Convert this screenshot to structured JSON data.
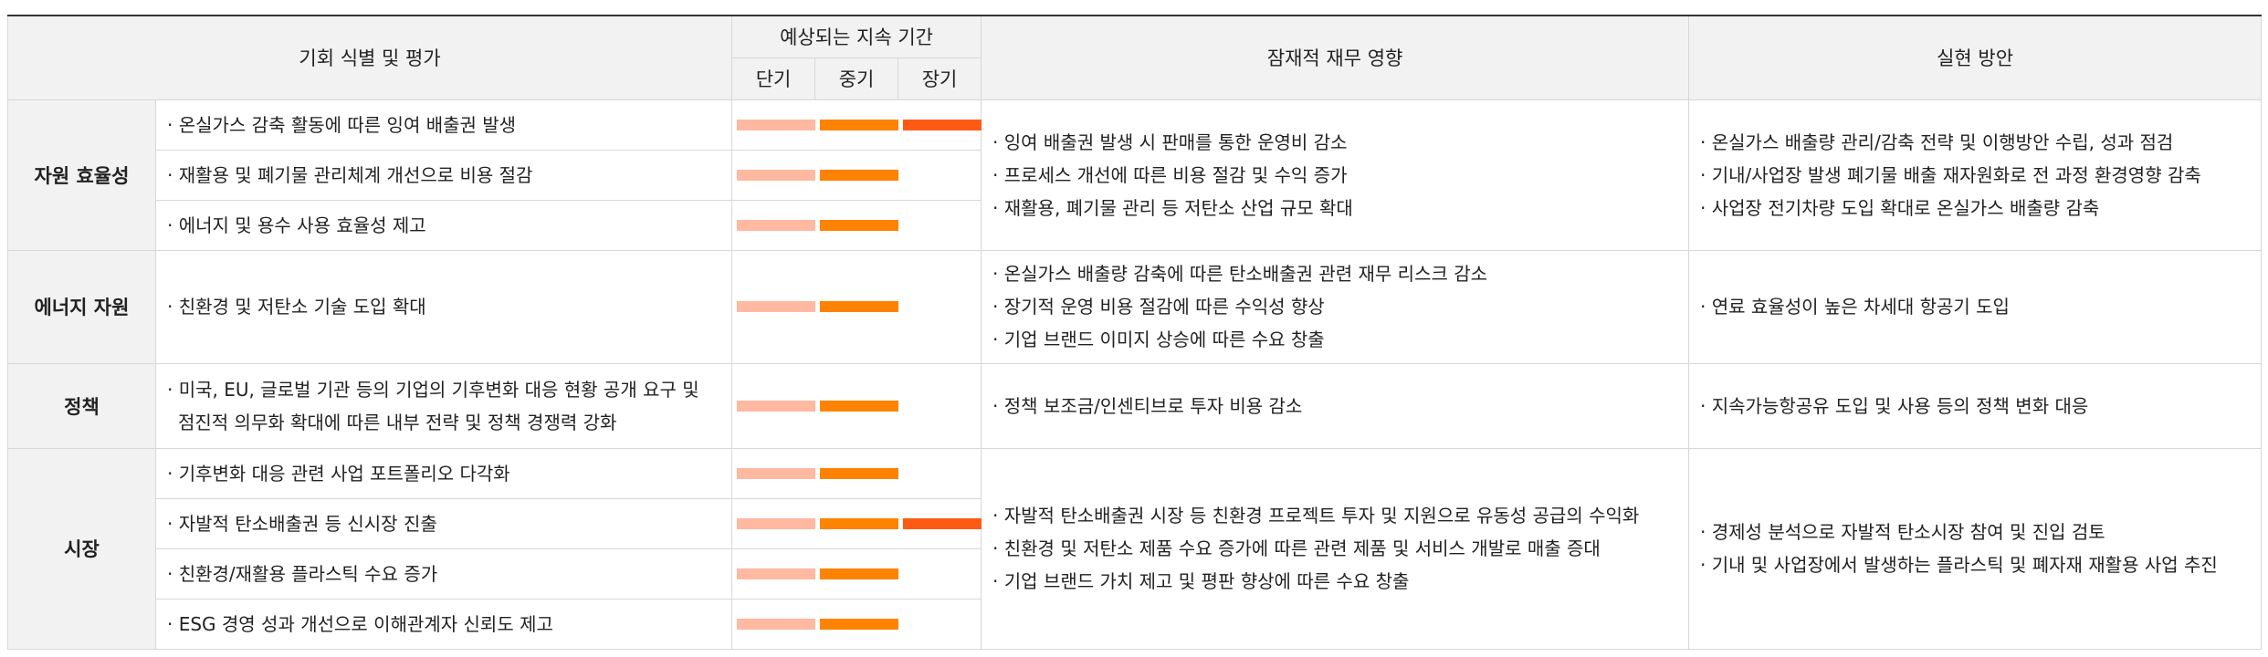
{
  "header": {
    "identification": "기회 식별 및 평가",
    "duration": "예상되는 지속 기간",
    "short": "단기",
    "medium": "중기",
    "long": "장기",
    "financial": "잠재적 재무 영향",
    "implementation": "실현 방안"
  },
  "colors": {
    "short": "#ffb9a0",
    "medium": "#ff8200",
    "long": "#ff5a14"
  },
  "groups": [
    {
      "category": "자원 효율성",
      "items": [
        {
          "text": "· 온실가스 감축 활동에 따른 잉여 배출권 발생",
          "short": true,
          "medium": true,
          "long": true
        },
        {
          "text": "· 재활용 및 폐기물 관리체계 개선으로 비용 절감",
          "short": true,
          "medium": true,
          "long": false
        },
        {
          "text": "· 에너지 및 용수 사용 효율성 제고",
          "short": true,
          "medium": true,
          "long": false
        }
      ],
      "financial": [
        "· 잉여 배출권 발생 시 판매를 통한 운영비 감소",
        "· 프로세스 개선에 따른 비용 절감 및 수익 증가",
        "· 재활용, 폐기물 관리 등 저탄소 산업 규모 확대"
      ],
      "implementation": [
        "· 온실가스 배출량 관리/감축 전략 및 이행방안 수립, 성과 점검",
        "· 기내/사업장 발생 폐기물 배출 재자원화로 전 과정 환경영향 감축",
        "· 사업장 전기차량 도입 확대로 온실가스 배출량 감축"
      ]
    },
    {
      "category": "에너지 자원",
      "items": [
        {
          "text": "· 친환경 및 저탄소 기술 도입 확대",
          "short": true,
          "medium": true,
          "long": false
        }
      ],
      "financial": [
        "· 온실가스 배출량 감축에 따른 탄소배출권 관련 재무 리스크 감소",
        "· 장기적 운영 비용 절감에 따른 수익성 향상",
        "· 기업 브랜드 이미지 상승에 따른 수요 창출"
      ],
      "implementation": [
        "· 연료 효율성이 높은 차세대 항공기 도입"
      ]
    },
    {
      "category": "정책",
      "items": [
        {
          "text": "· 미국, EU, 글로벌 기관 등의 기업의 기후변화 대응 현황 공개 요구 및",
          "text2": "점진적 의무화 확대에 따른 내부 전략 및 정책 경쟁력 강화",
          "short": true,
          "medium": true,
          "long": false
        }
      ],
      "financial": [
        "· 정책 보조금/인센티브로 투자 비용 감소"
      ],
      "implementation": [
        "· 지속가능항공유 도입 및 사용 등의 정책 변화 대응"
      ]
    },
    {
      "category": "시장",
      "items": [
        {
          "text": "· 기후변화 대응 관련 사업 포트폴리오 다각화",
          "short": true,
          "medium": true,
          "long": false
        },
        {
          "text": "· 자발적 탄소배출권 등 신시장 진출",
          "short": true,
          "medium": true,
          "long": true
        },
        {
          "text": "· 친환경/재활용 플라스틱 수요 증가",
          "short": true,
          "medium": true,
          "long": false
        },
        {
          "text": "· ESG 경영 성과 개선으로 이해관계자 신뢰도 제고",
          "short": true,
          "medium": true,
          "long": false
        }
      ],
      "financial": [
        "· 자발적 탄소배출권 시장 등 친환경 프로젝트 투자 및 지원으로 유동성 공급의 수익화",
        "· 친환경 및 저탄소 제품 수요 증가에 따른 관련 제품 및 서비스 개발로 매출 증대",
        "· 기업 브랜드 가치 제고 및 평판 향상에 따른 수요 창출"
      ],
      "implementation": [
        "· 경제성 분석으로 자발적 탄소시장 참여 및 진입 검토",
        "· 기내 및 사업장에서 발생하는 플라스틱 및 폐자재 재활용 사업 추진"
      ]
    }
  ]
}
